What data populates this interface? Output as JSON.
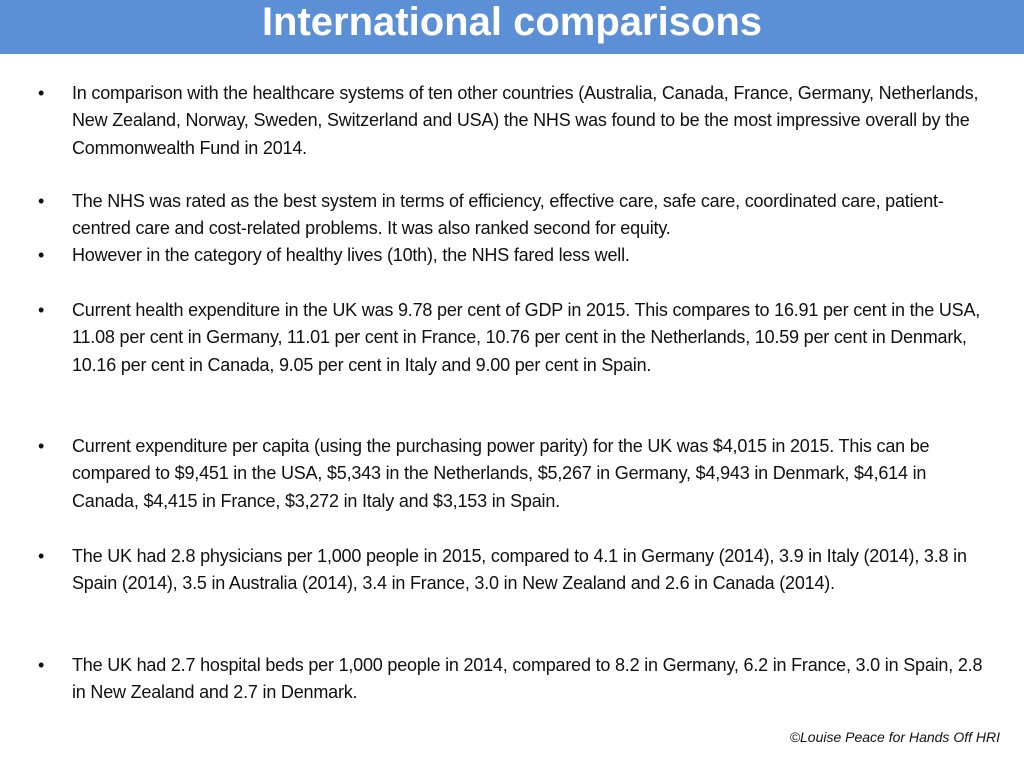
{
  "header": {
    "title": "International comparisons"
  },
  "bullets": [
    "In comparison with the healthcare systems of ten other countries (Australia, Canada, France, Germany, Netherlands, New Zealand, Norway, Sweden, Switzerland and USA) the NHS was found to be the most impressive overall by the Commonwealth Fund in 2014.",
    "The NHS was rated as the best system in terms of efficiency, effective care, safe care, coordinated care, patient-centred care and cost-related problems. It was also ranked second for equity.",
    "However in the category of healthy lives (10th), the NHS fared less well.",
    "Current health expenditure in the UK was 9.78 per cent of GDP in 2015. This compares to 16.91 per cent in the USA, 11.08 per cent in Germany, 11.01 per cent in France, 10.76 per cent in the Netherlands, 10.59 per cent in Denmark, 10.16 per cent in Canada, 9.05 per cent in Italy and 9.00 per cent in Spain.",
    "Current expenditure per capita (using the purchasing power parity) for the UK was $4,015 in 2015. This can be compared to $9,451 in the USA, $5,343 in the Netherlands, $5,267 in Germany, $4,943 in Denmark, $4,614 in Canada, $4,415 in France, $3,272 in Italy and $3,153 in Spain.",
    "The UK had 2.8 physicians per 1,000 people in 2015, compared to 4.1 in Germany (2014), 3.9 in Italy (2014), 3.8 in Spain (2014), 3.5 in Australia (2014), 3.4 in France, 3.0 in New Zealand and 2.6 in Canada (2014).",
    "The UK had 2.7 hospital beds per 1,000 people in 2014, compared to 8.2 in Germany, 6.2 in France, 3.0 in Spain, 2.8 in New Zealand and 2.7 in Denmark."
  ],
  "footer": "©Louise Peace for Hands Off HRI"
}
